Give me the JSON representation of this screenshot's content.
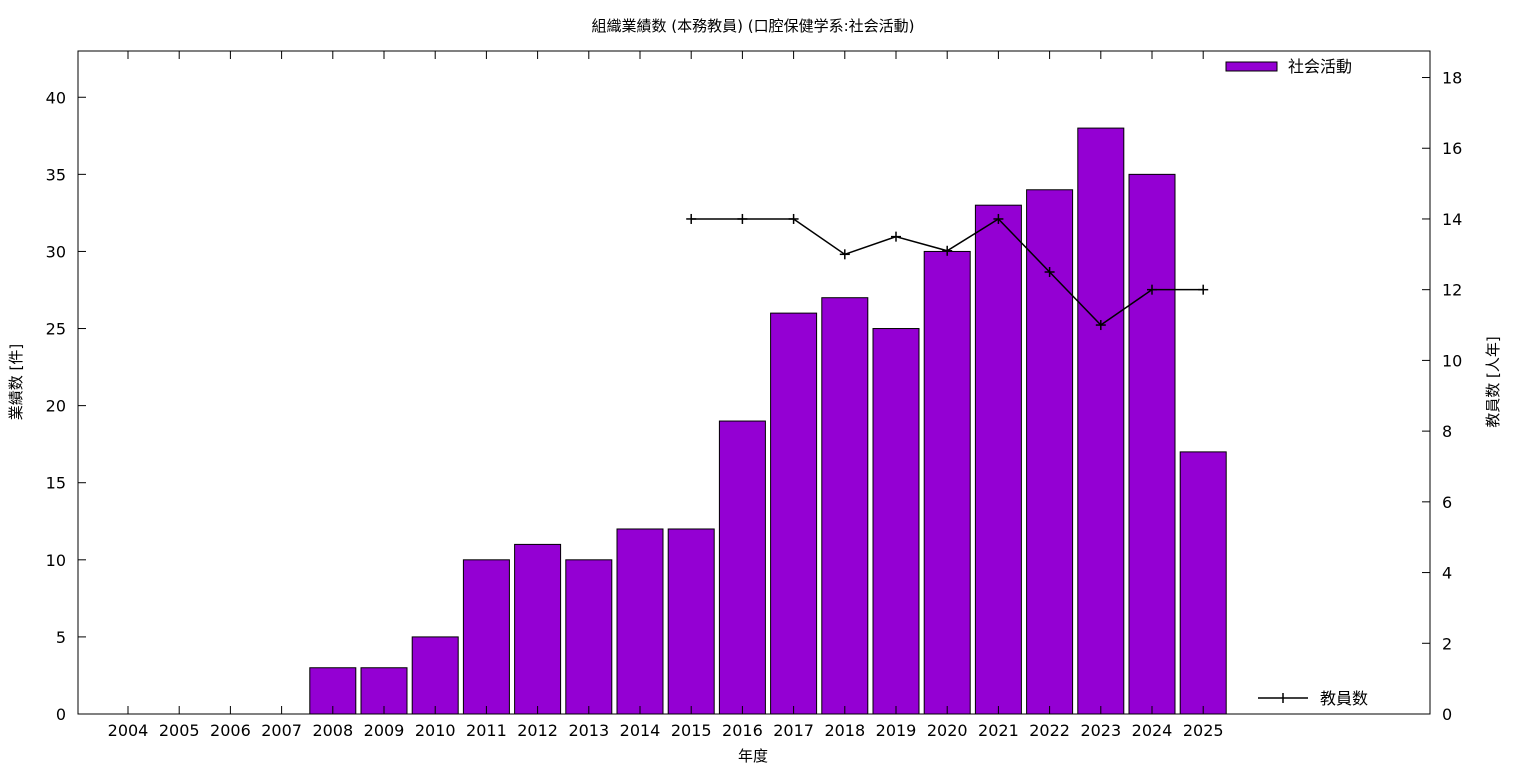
{
  "chart_data": {
    "type": "bar",
    "title": "組織業績数 (本務教員) (口腔保健学系:社会活動)",
    "xlabel": "年度",
    "ylabel": "業績数 [件]",
    "y2label": "教員数 [人年]",
    "categories": [
      "2004",
      "2005",
      "2006",
      "2007",
      "2008",
      "2009",
      "2010",
      "2011",
      "2012",
      "2013",
      "2014",
      "2015",
      "2016",
      "2017",
      "2018",
      "2019",
      "2020",
      "2021",
      "2022",
      "2023",
      "2024",
      "2025"
    ],
    "series": [
      {
        "name": "社会活動",
        "type": "bar",
        "axis": "left",
        "color": "#9400d3",
        "values": [
          0,
          0,
          0,
          0,
          3,
          3,
          5,
          10,
          11,
          10,
          12,
          12,
          19,
          26,
          27,
          25,
          30,
          33,
          34,
          38,
          35,
          17
        ]
      },
      {
        "name": "教員数",
        "type": "line",
        "axis": "right",
        "color": "#000000",
        "values": [
          null,
          null,
          null,
          null,
          null,
          null,
          null,
          null,
          null,
          null,
          null,
          14,
          14,
          14,
          13,
          13.5,
          13.1,
          14,
          12.5,
          11,
          12,
          12
        ]
      }
    ],
    "ylim": [
      0,
      43
    ],
    "y2lim": [
      0,
      18.75
    ],
    "yticks": [
      0,
      5,
      10,
      15,
      20,
      25,
      30,
      35,
      40
    ],
    "y2ticks": [
      0,
      2,
      4,
      6,
      8,
      10,
      12,
      14,
      16,
      18
    ],
    "legend_position": [
      "top-right",
      "bottom-right"
    ],
    "grid": false
  }
}
